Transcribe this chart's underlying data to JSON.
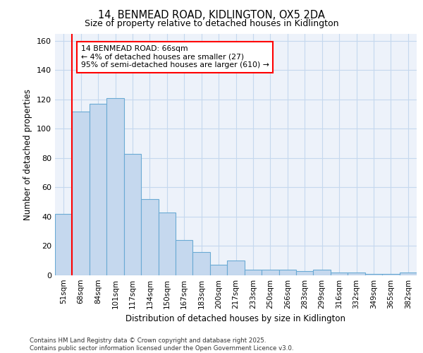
{
  "title_line1": "14, BENMEAD ROAD, KIDLINGTON, OX5 2DA",
  "title_line2": "Size of property relative to detached houses in Kidlington",
  "xlabel": "Distribution of detached houses by size in Kidlington",
  "ylabel": "Number of detached properties",
  "categories": [
    "51sqm",
    "68sqm",
    "84sqm",
    "101sqm",
    "117sqm",
    "134sqm",
    "150sqm",
    "167sqm",
    "183sqm",
    "200sqm",
    "217sqm",
    "233sqm",
    "250sqm",
    "266sqm",
    "283sqm",
    "299sqm",
    "316sqm",
    "332sqm",
    "349sqm",
    "365sqm",
    "382sqm"
  ],
  "values": [
    42,
    112,
    117,
    121,
    83,
    52,
    43,
    24,
    16,
    7,
    10,
    4,
    4,
    4,
    3,
    4,
    2,
    2,
    1,
    1,
    2
  ],
  "bar_color": "#c5d8ee",
  "bar_edge_color": "#6aaad4",
  "vline_color": "red",
  "annotation_text": "14 BENMEAD ROAD: 66sqm\n← 4% of detached houses are smaller (27)\n95% of semi-detached houses are larger (610) →",
  "annotation_box_color": "white",
  "annotation_box_edge": "red",
  "ylim": [
    0,
    165
  ],
  "yticks": [
    0,
    20,
    40,
    60,
    80,
    100,
    120,
    140,
    160
  ],
  "grid_color": "#c5d8ee",
  "footer_text": "Contains HM Land Registry data © Crown copyright and database right 2025.\nContains public sector information licensed under the Open Government Licence v3.0.",
  "bg_color": "#edf2fa"
}
